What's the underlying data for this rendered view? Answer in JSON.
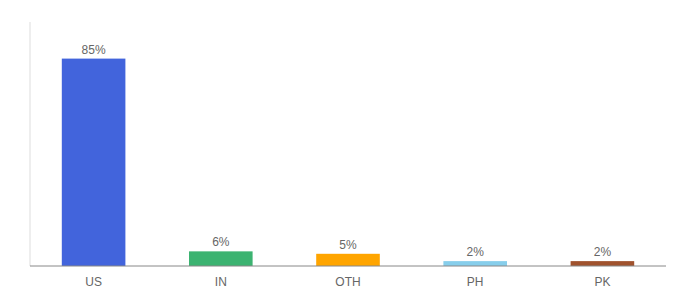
{
  "chart_data": {
    "type": "bar",
    "categories": [
      "US",
      "IN",
      "OTH",
      "PH",
      "PK"
    ],
    "values": [
      85,
      6,
      5,
      2,
      2
    ],
    "value_labels": [
      "85%",
      "6%",
      "5%",
      "2%",
      "2%"
    ],
    "colors": [
      "#4264DC",
      "#3CB371",
      "#FFA500",
      "#87CEEB",
      "#A0522D"
    ],
    "ylim": [
      0,
      100
    ],
    "data_labels": true,
    "tick_labels": "x",
    "grid": false
  }
}
